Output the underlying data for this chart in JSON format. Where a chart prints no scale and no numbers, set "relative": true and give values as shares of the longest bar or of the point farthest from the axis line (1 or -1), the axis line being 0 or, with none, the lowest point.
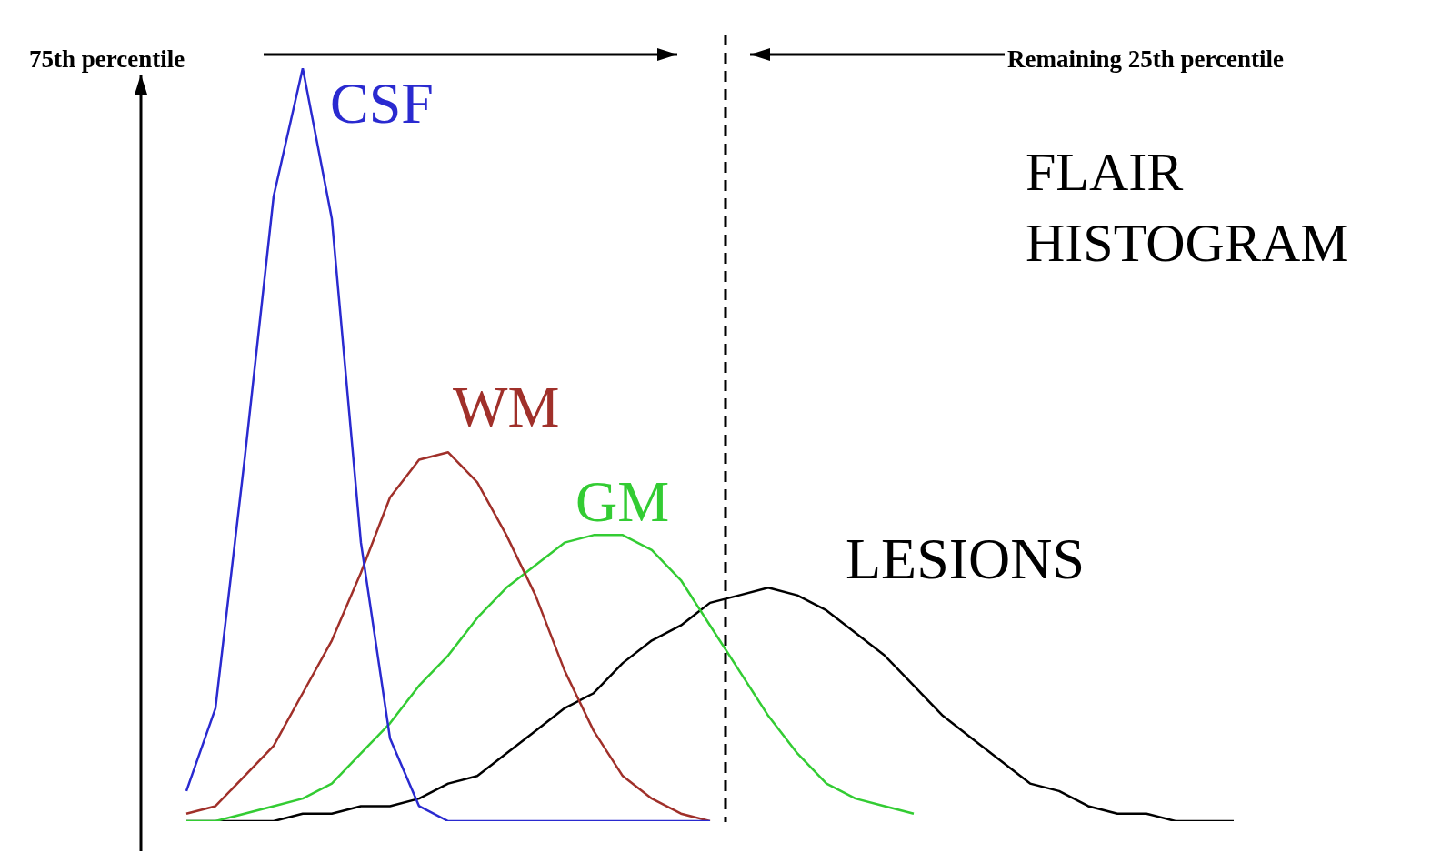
{
  "chart_data": {
    "type": "line",
    "title": "FLAIR HISTOGRAM",
    "annotations": [
      "75th percentile",
      "Remaining 25th percentile"
    ],
    "relative": true,
    "categories": [
      null,
      null,
      null,
      null,
      null,
      null,
      null,
      null,
      null,
      null,
      null,
      null,
      null,
      null,
      null,
      null,
      null,
      null,
      null,
      null,
      null,
      null,
      null,
      null,
      null,
      null,
      null,
      null,
      null,
      null,
      null,
      null,
      null,
      null,
      null,
      null,
      null
    ],
    "series": [
      {
        "name": "CSF",
        "color": "#2a2ad0",
        "values": [
          0.04,
          0.15,
          0.48,
          0.83,
          1,
          0.8,
          0.37,
          0.11,
          0.02,
          0,
          0,
          0,
          0,
          0,
          0,
          0,
          0,
          0,
          0,
          null,
          null,
          null,
          null,
          null,
          null,
          null,
          null,
          null,
          null,
          null,
          null,
          null,
          null,
          null,
          null,
          null,
          null
        ]
      },
      {
        "name": "WM",
        "color": "#a0302a",
        "values": [
          0.01,
          0.02,
          0.06,
          0.1,
          0.17,
          0.24,
          0.33,
          0.43,
          0.48,
          0.49,
          0.45,
          0.38,
          0.3,
          0.2,
          0.12,
          0.06,
          0.03,
          0.01,
          0,
          null,
          null,
          null,
          null,
          null,
          null,
          null,
          null,
          null,
          null,
          null,
          null,
          null,
          null,
          null,
          null,
          null,
          null
        ]
      },
      {
        "name": "GM",
        "color": "#33cc33",
        "values": [
          0,
          0,
          0.01,
          0.02,
          0.03,
          0.05,
          0.09,
          0.13,
          0.18,
          0.22,
          0.27,
          0.31,
          0.34,
          0.37,
          0.38,
          0.38,
          0.36,
          0.32,
          0.26,
          0.2,
          0.14,
          0.09,
          0.05,
          0.03,
          0.02,
          0.01,
          null,
          null,
          null,
          null,
          null,
          null,
          null,
          null,
          null,
          null,
          null
        ]
      },
      {
        "name": "LESIONS",
        "color": "#000000",
        "values": [
          0,
          0,
          0,
          0,
          0.01,
          0.01,
          0.02,
          0.02,
          0.03,
          0.05,
          0.06,
          0.09,
          0.12,
          0.15,
          0.17,
          0.21,
          0.24,
          0.26,
          0.29,
          0.3,
          0.31,
          0.3,
          0.28,
          0.25,
          0.22,
          0.18,
          0.14,
          0.11,
          0.08,
          0.05,
          0.04,
          0.02,
          0.01,
          0.01,
          0,
          0,
          0
        ]
      }
    ]
  }
}
